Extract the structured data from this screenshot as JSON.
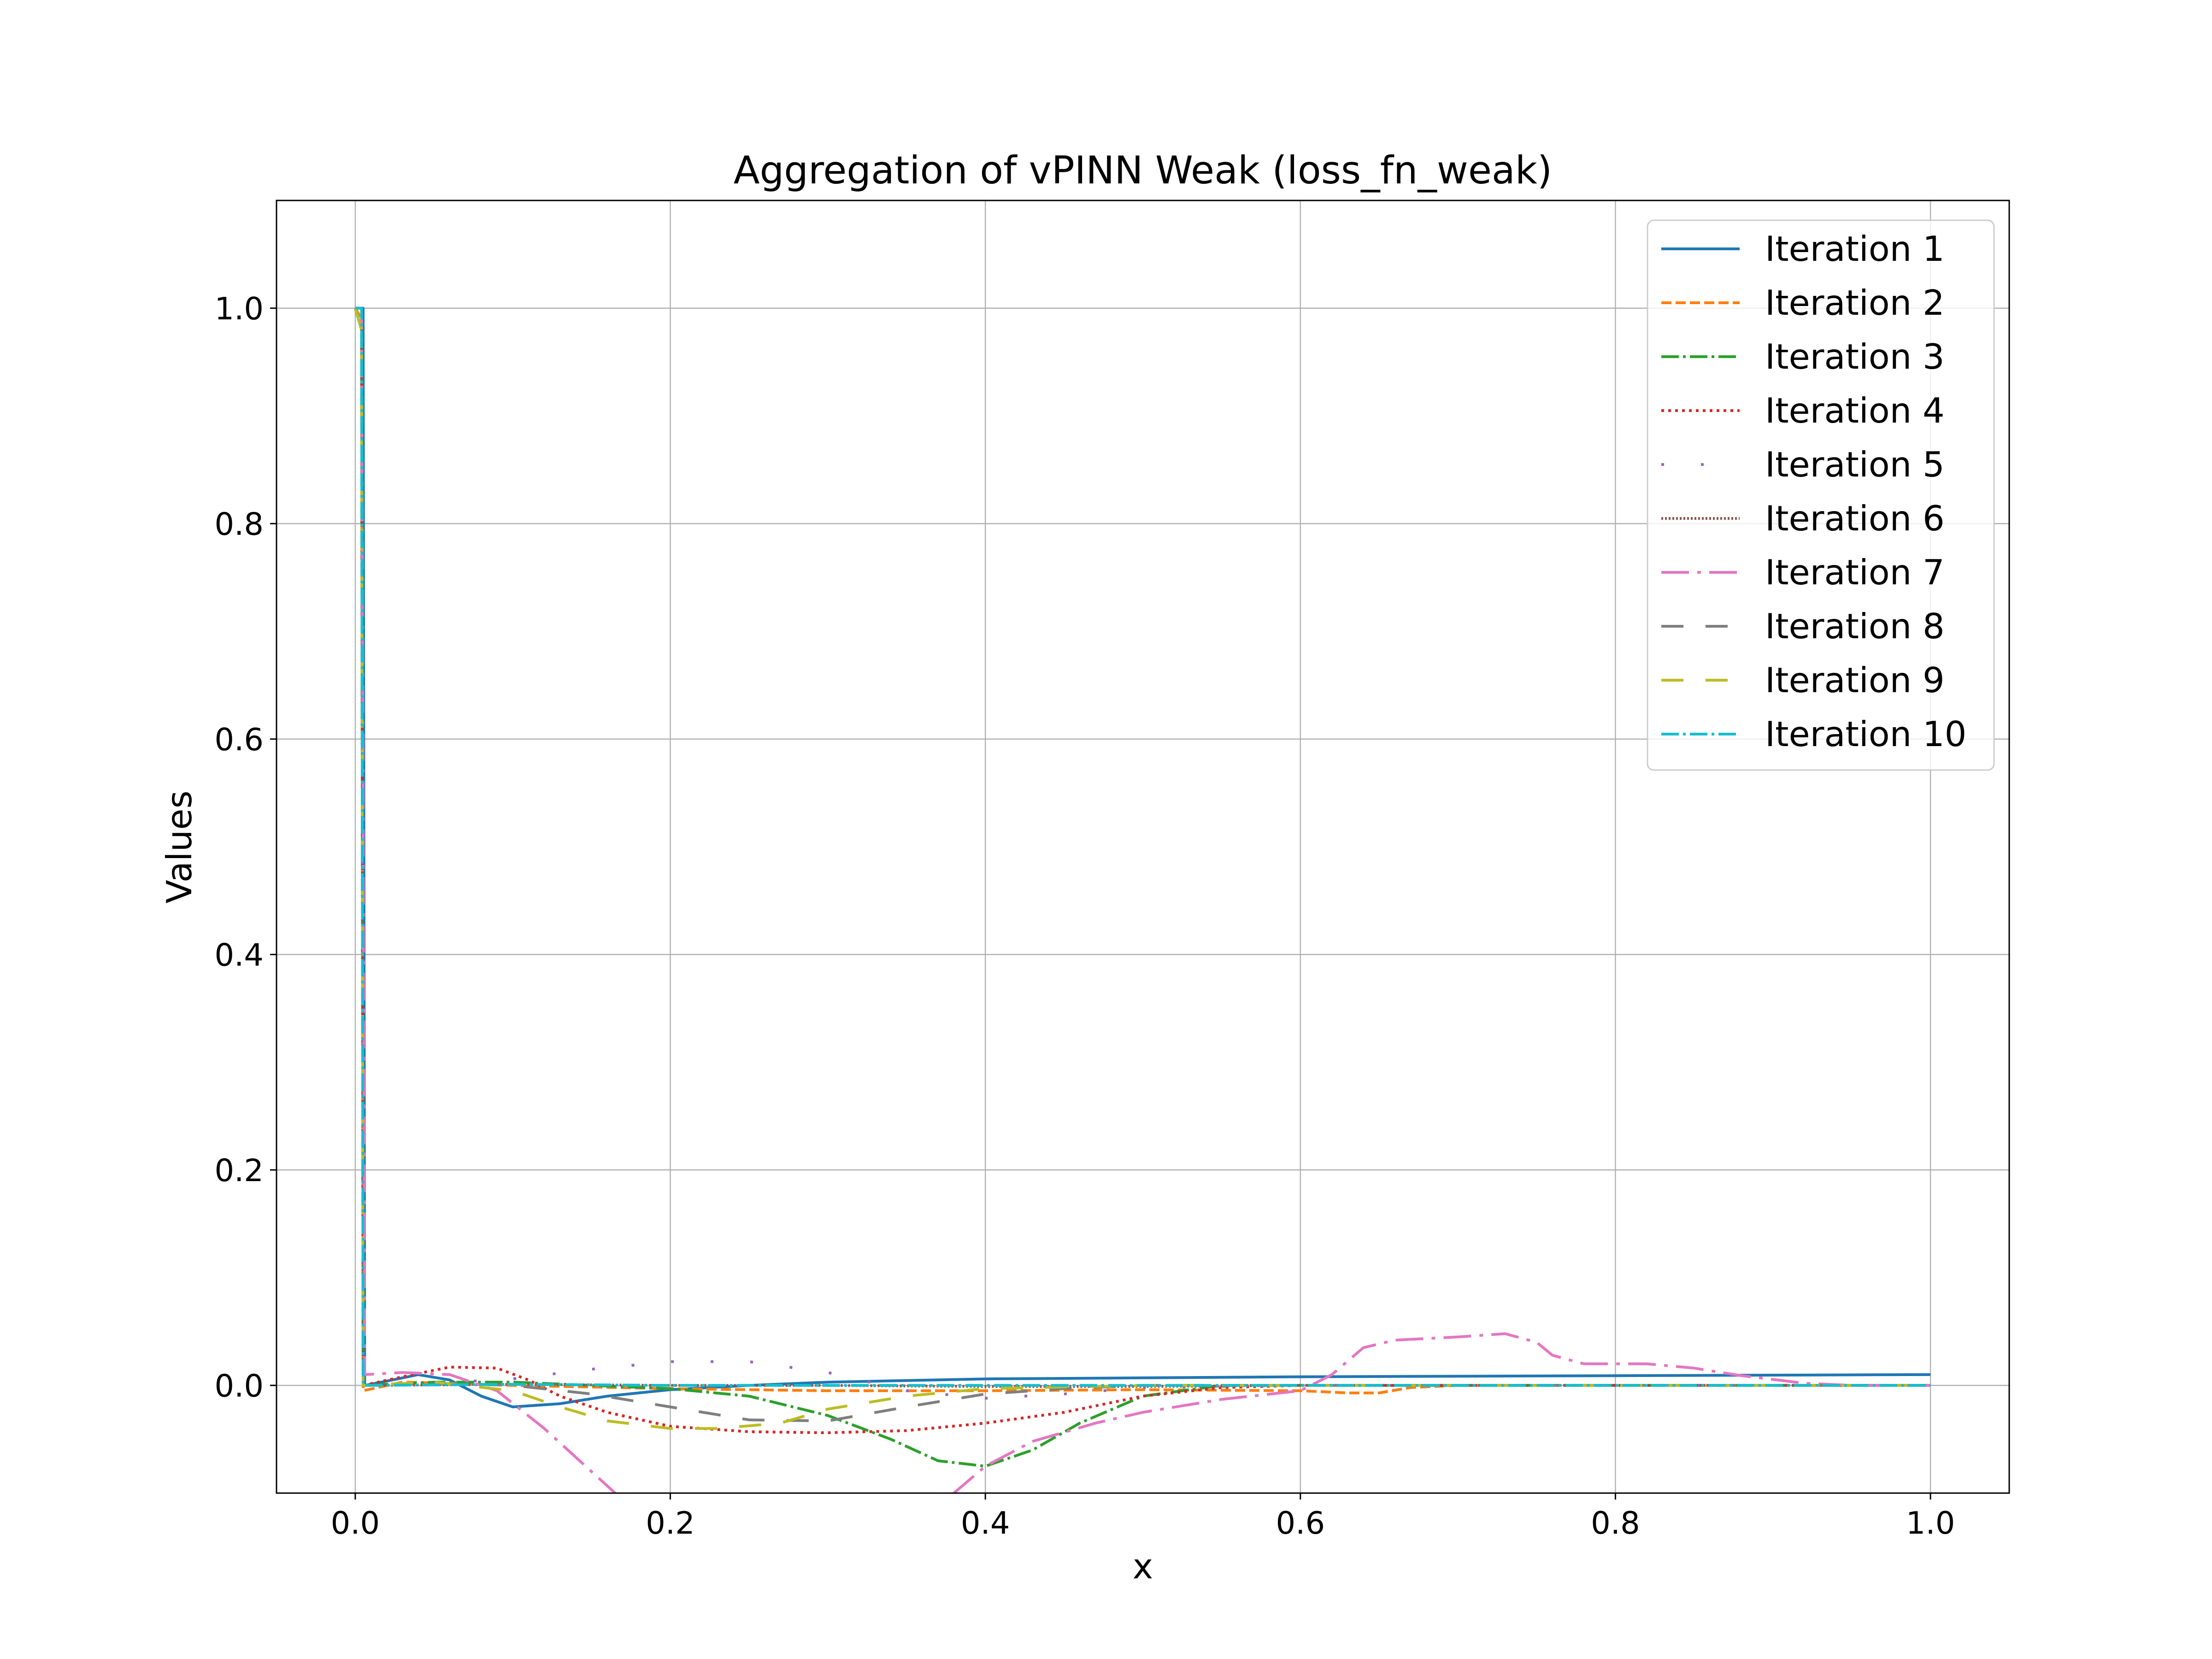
{
  "chart_data": {
    "type": "line",
    "title": "Aggregation of vPINN Weak (loss_fn_weak)",
    "xlabel": "x",
    "ylabel": "Values",
    "xlim": [
      -0.05,
      1.05
    ],
    "ylim": [
      -0.1,
      1.1
    ],
    "xticks": [
      0.0,
      0.2,
      0.4,
      0.6,
      0.8,
      1.0
    ],
    "xtick_labels": [
      "0.0",
      "0.2",
      "0.4",
      "0.6",
      "0.8",
      "1.0"
    ],
    "yticks": [
      0.0,
      0.2,
      0.4,
      0.6,
      0.8,
      1.0
    ],
    "ytick_labels": [
      "0.0",
      "0.2",
      "0.4",
      "0.6",
      "0.8",
      "1.0"
    ],
    "grid": true,
    "legend_position": "top-right",
    "series": [
      {
        "name": "Iteration 1",
        "color": "#1f77b4",
        "style": "solid",
        "x": [
          0.0,
          0.005,
          0.006,
          0.02,
          0.04,
          0.06,
          0.08,
          0.1,
          0.13,
          0.16,
          0.2,
          0.25,
          0.3,
          0.4,
          0.5,
          0.6,
          0.7,
          0.8,
          0.9,
          1.0
        ],
        "y": [
          1.0,
          1.0,
          0.0,
          0.004,
          0.01,
          0.005,
          -0.01,
          -0.02,
          -0.017,
          -0.01,
          -0.004,
          0.0,
          0.003,
          0.006,
          0.007,
          0.008,
          0.0085,
          0.009,
          0.0095,
          0.01
        ]
      },
      {
        "name": "Iteration 2",
        "color": "#ff7f0e",
        "style": "dashed",
        "x": [
          0.0,
          0.004,
          0.005,
          0.03,
          0.06,
          0.1,
          0.2,
          0.3,
          0.4,
          0.5,
          0.6,
          0.63,
          0.65,
          0.67,
          0.7,
          0.8,
          1.0
        ],
        "y": [
          1.0,
          0.99,
          -0.005,
          0.003,
          0.002,
          0.0,
          -0.003,
          -0.005,
          -0.005,
          -0.004,
          -0.005,
          -0.007,
          -0.007,
          -0.002,
          0.0,
          0.0,
          0.0
        ]
      },
      {
        "name": "Iteration 3",
        "color": "#2ca02c",
        "style": "dashdot",
        "x": [
          0.0,
          0.004,
          0.005,
          0.05,
          0.1,
          0.15,
          0.2,
          0.25,
          0.3,
          0.34,
          0.37,
          0.4,
          0.43,
          0.46,
          0.5,
          0.55,
          0.6,
          0.7,
          1.0
        ],
        "y": [
          1.0,
          0.98,
          0.0,
          0.003,
          0.003,
          0.0,
          -0.003,
          -0.01,
          -0.028,
          -0.05,
          -0.07,
          -0.075,
          -0.06,
          -0.035,
          -0.01,
          0.0,
          0.0,
          0.0,
          0.0
        ]
      },
      {
        "name": "Iteration 4",
        "color": "#d62728",
        "style": "dotted",
        "x": [
          0.0,
          0.004,
          0.005,
          0.03,
          0.06,
          0.09,
          0.11,
          0.13,
          0.16,
          0.2,
          0.25,
          0.3,
          0.35,
          0.4,
          0.45,
          0.5,
          0.55,
          0.6,
          0.7,
          1.0
        ],
        "y": [
          1.0,
          0.98,
          0.0,
          0.008,
          0.017,
          0.016,
          0.005,
          -0.01,
          -0.025,
          -0.038,
          -0.043,
          -0.044,
          -0.042,
          -0.035,
          -0.025,
          -0.01,
          -0.002,
          0.0,
          0.0,
          0.0
        ]
      },
      {
        "name": "Iteration 5",
        "color": "#9467bd",
        "style": "sparsedot",
        "x": [
          0.0,
          0.004,
          0.005,
          0.05,
          0.1,
          0.15,
          0.2,
          0.25,
          0.3,
          0.35,
          0.4,
          0.45,
          0.5,
          0.6,
          0.7,
          1.0
        ],
        "y": [
          1.0,
          0.98,
          0.0,
          0.002,
          0.006,
          0.015,
          0.022,
          0.022,
          0.012,
          -0.005,
          -0.012,
          -0.008,
          -0.002,
          0.0,
          0.0,
          0.0
        ]
      },
      {
        "name": "Iteration 6",
        "color": "#8c564b",
        "style": "densedot",
        "x": [
          0.0,
          0.004,
          0.005,
          0.1,
          0.2,
          0.3,
          0.4,
          0.5,
          0.6,
          0.7,
          1.0
        ],
        "y": [
          1.0,
          0.98,
          0.0,
          0.001,
          0.0,
          0.0,
          -0.001,
          -0.001,
          0.0,
          0.0,
          0.0
        ]
      },
      {
        "name": "Iteration 7",
        "color": "#e377c2",
        "style": "longdashdot",
        "x": [
          0.0,
          0.004,
          0.006,
          0.03,
          0.06,
          0.09,
          0.12,
          0.15,
          0.18,
          0.21,
          0.25,
          0.3,
          0.35,
          0.38,
          0.4,
          0.43,
          0.47,
          0.5,
          0.55,
          0.6,
          0.62,
          0.64,
          0.66,
          0.7,
          0.73,
          0.75,
          0.76,
          0.78,
          0.82,
          0.85,
          0.88,
          0.92,
          0.95,
          1.0
        ],
        "y": [
          1.0,
          1.0,
          0.01,
          0.012,
          0.01,
          -0.005,
          -0.04,
          -0.08,
          -0.12,
          -0.16,
          -0.22,
          -0.27,
          -0.19,
          -0.1,
          -0.075,
          -0.052,
          -0.035,
          -0.025,
          -0.013,
          -0.005,
          0.01,
          0.035,
          0.042,
          0.045,
          0.048,
          0.04,
          0.028,
          0.02,
          0.02,
          0.016,
          0.009,
          0.002,
          0.0,
          0.0
        ]
      },
      {
        "name": "Iteration 8",
        "color": "#7f7f7f",
        "style": "longdash",
        "x": [
          0.0,
          0.004,
          0.005,
          0.05,
          0.1,
          0.15,
          0.2,
          0.25,
          0.3,
          0.35,
          0.4,
          0.45,
          0.5,
          0.6,
          1.0
        ],
        "y": [
          1.0,
          0.98,
          0.0,
          0.002,
          0.0,
          -0.008,
          -0.02,
          -0.032,
          -0.033,
          -0.02,
          -0.008,
          -0.003,
          0.0,
          0.0,
          0.0
        ]
      },
      {
        "name": "Iteration 9",
        "color": "#bcbd22",
        "style": "longdash",
        "x": [
          0.0,
          0.004,
          0.005,
          0.05,
          0.1,
          0.13,
          0.16,
          0.2,
          0.23,
          0.27,
          0.3,
          0.35,
          0.4,
          0.5,
          0.6,
          1.0
        ],
        "y": [
          1.0,
          0.98,
          0.0,
          0.003,
          -0.005,
          -0.02,
          -0.033,
          -0.04,
          -0.04,
          -0.035,
          -0.022,
          -0.01,
          -0.003,
          0.0,
          0.0,
          0.0
        ]
      },
      {
        "name": "Iteration 10",
        "color": "#17becf",
        "style": "dashdot",
        "x": [
          0.0,
          0.004,
          0.005,
          0.1,
          0.2,
          0.3,
          0.4,
          0.5,
          0.6,
          0.7,
          0.8,
          0.9,
          1.0
        ],
        "y": [
          1.0,
          1.0,
          0.0,
          0.001,
          0.0,
          0.0,
          0.0,
          0.0,
          0.0,
          0.0,
          0.0,
          0.0,
          0.0
        ]
      }
    ]
  }
}
